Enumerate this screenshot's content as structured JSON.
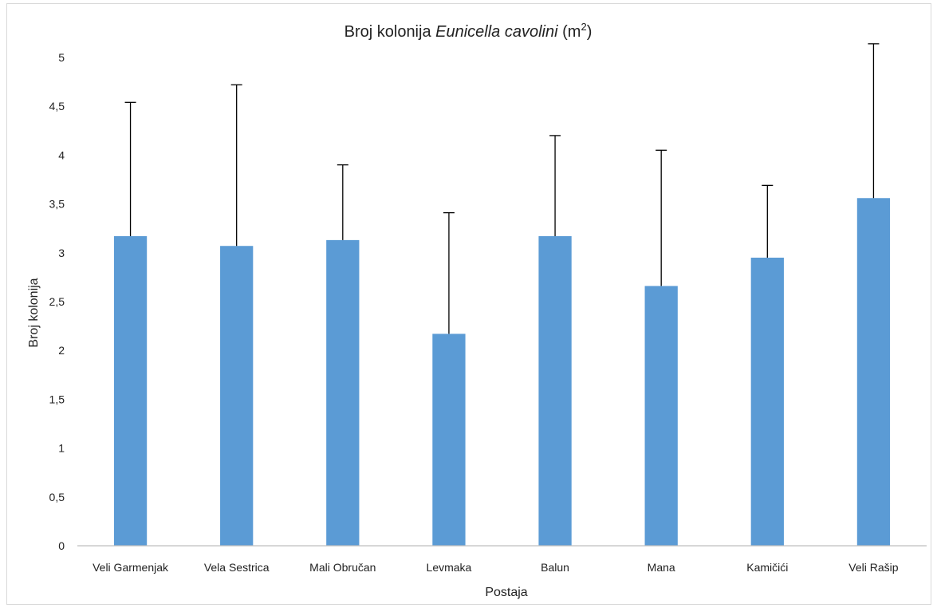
{
  "chart_data": {
    "type": "bar",
    "title": {
      "prefix": "Broj kolonija ",
      "italic": "Eunicella cavolini",
      "suffix_open": " (m",
      "superscript": "2",
      "suffix_close": ")"
    },
    "xlabel": "Postaja",
    "ylabel": "Broj kolonija",
    "categories": [
      "Veli Garmenjak",
      "Vela Sestrica",
      "Mali Obručan",
      "Levmaka",
      "Balun",
      "Mana",
      "Kamičići",
      "Veli Rašip"
    ],
    "values": [
      3.17,
      3.07,
      3.13,
      2.17,
      3.17,
      2.66,
      2.95,
      3.56
    ],
    "error_upper": [
      4.54,
      4.72,
      3.9,
      3.41,
      4.2,
      4.05,
      3.69,
      5.14
    ],
    "ylim": [
      0,
      5
    ],
    "yticks": [
      0,
      0.5,
      1,
      1.5,
      2,
      2.5,
      3,
      3.5,
      4,
      4.5,
      5
    ],
    "ytick_labels": [
      "0",
      "0,5",
      "1",
      "1,5",
      "2",
      "2,5",
      "3",
      "3,5",
      "4",
      "4,5",
      "5"
    ],
    "grid": false,
    "legend": "none",
    "colors": {
      "bar": "#5b9bd5",
      "error_bar": "#000000",
      "axis": "#bfbfbf"
    }
  }
}
